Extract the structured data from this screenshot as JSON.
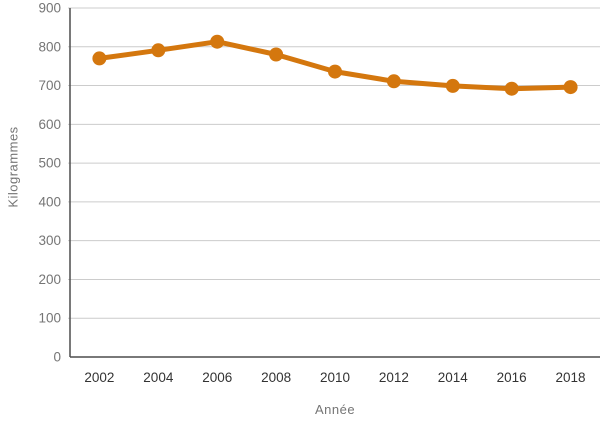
{
  "chart_data": {
    "type": "line",
    "title": "",
    "xlabel": "Année",
    "ylabel": "Kilogrammes",
    "x_ticks": [
      "2002",
      "2004",
      "2006",
      "2008",
      "2010",
      "2012",
      "2014",
      "2016",
      "2018"
    ],
    "y_ticks": [
      "0",
      "100",
      "200",
      "300",
      "400",
      "500",
      "600",
      "700",
      "800",
      "900"
    ],
    "ylim": [
      0,
      900
    ],
    "grid": true,
    "legend": false,
    "series": [
      {
        "name": "Kilogrammes",
        "values": [
          770,
          791,
          813,
          780,
          736,
          711,
          699,
          692,
          696
        ]
      }
    ],
    "colors": {
      "line": "#D4770E",
      "marker": "#D4770E",
      "grid": "#CCCCCC",
      "axis": "#4D4D4D",
      "y_tick_label": "#757575",
      "x_tick_label": "#333333",
      "axis_title": "#757575",
      "background": "#FFFFFF"
    },
    "style": {
      "line_width": 5,
      "marker_radius": 7
    }
  }
}
